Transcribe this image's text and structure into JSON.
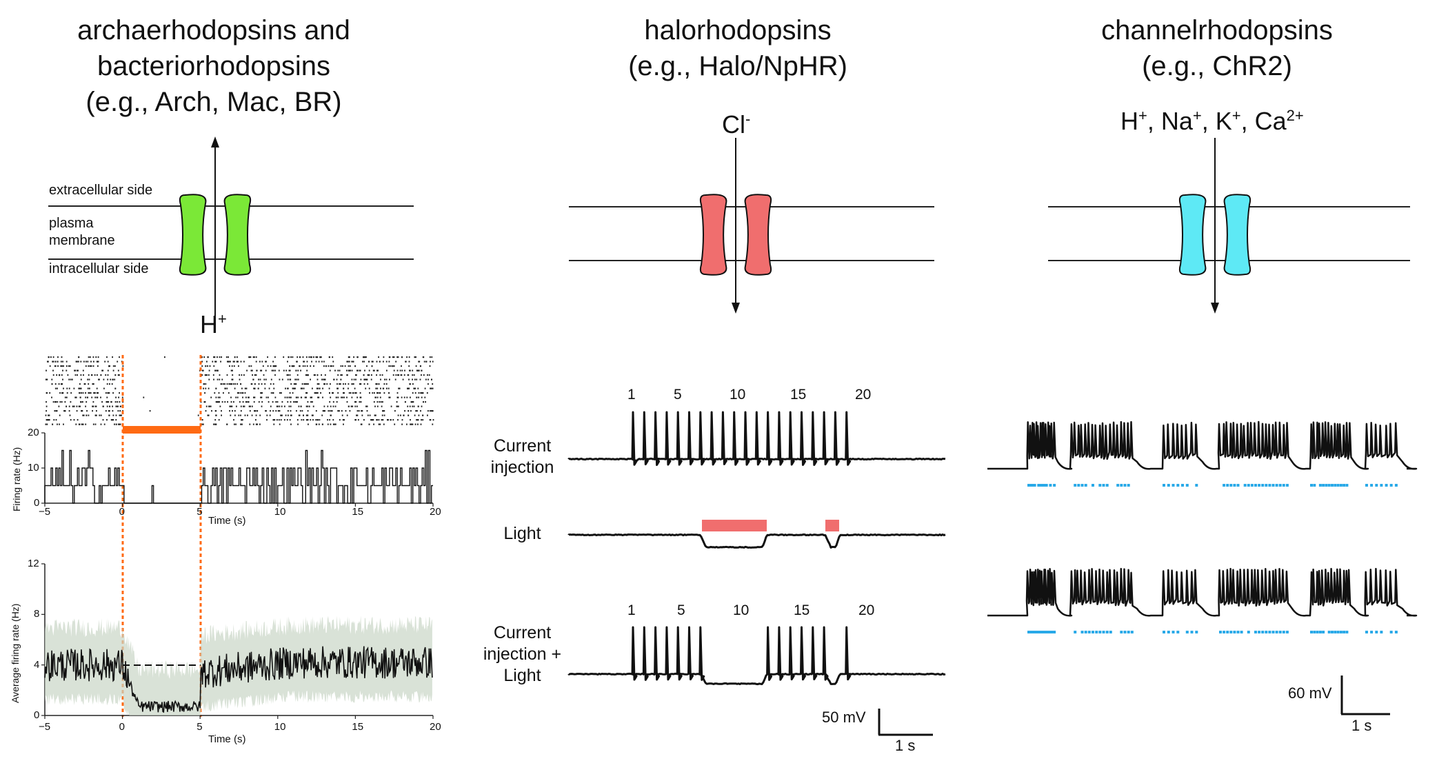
{
  "columns": [
    {
      "id": "arch",
      "title_lines": [
        "archaerhodopsins and",
        "bacteriorhodopsins",
        "(e.g., Arch, Mac, BR)"
      ],
      "color": "#7be837",
      "ion": "H+"
    },
    {
      "id": "halo",
      "title_lines": [
        "halorhodopsins",
        "(e.g., Halo/NpHR)"
      ],
      "color": "#f06e6e",
      "ion": "Cl-"
    },
    {
      "id": "chr2",
      "title_lines": [
        "channelrhodopsins",
        "(e.g., ChR2)"
      ],
      "color": "#5ee9f5",
      "ion": "H+, Na+, K+, Ca2+"
    }
  ],
  "membrane_labels": {
    "extracellular": "extracellular side",
    "membrane": "plasma membrane",
    "intracellular": "intracellular side"
  },
  "arch_panel": {
    "light_color": "#ff6a13",
    "raster": {
      "light_on_s": 0,
      "light_off_s": 5
    },
    "histogram": {
      "ylabel": "Firing rate (Hz)",
      "xlabel": "Time (s)",
      "xticks": [
        "−5",
        "0",
        "5",
        "10",
        "15",
        "20"
      ],
      "yticks": [
        "0",
        "10",
        "20"
      ],
      "xlim": [
        -5,
        20
      ],
      "ylim": [
        0,
        20
      ]
    },
    "average": {
      "ylabel": "Average firing  rate (Hz)",
      "xlabel": "Time (s)",
      "xticks": [
        "−5",
        "0",
        "5",
        "10",
        "15",
        "20"
      ],
      "yticks": [
        "0",
        "4",
        "8",
        "12"
      ],
      "xlim": [
        -5,
        20
      ],
      "ylim": [
        0,
        12
      ],
      "baseline": 4
    }
  },
  "halo_panel": {
    "rows": [
      {
        "label": "Current injection"
      },
      {
        "label": "Light"
      },
      {
        "label": "Current injection + Light"
      }
    ],
    "spike_numbers": [
      "1",
      "5",
      "10",
      "15",
      "20"
    ],
    "scalebar": {
      "v": "50 mV",
      "t": "1 s"
    }
  },
  "chr2_panel": {
    "marker_color": "#29a9e8",
    "scalebar": {
      "v": "60 mV",
      "t": "1 s"
    }
  },
  "chart_data": [
    {
      "type": "scatter",
      "title": "",
      "xlabel": "",
      "ylabel": "",
      "xlim": [
        -5,
        20
      ],
      "series": [
        {
          "name": "",
          "note_values": "spike raster, no spikes during light 0–5 s"
        }
      ]
    },
    {
      "type": "bar",
      "xlabel": "Time (s)",
      "ylabel": "Firing rate (Hz)",
      "xlim": [
        -5,
        20
      ],
      "ylim": [
        0,
        20
      ],
      "x": [
        -5,
        0,
        5,
        10,
        15,
        20
      ],
      "series": [
        {
          "name": "",
          "values": [
            5,
            0.5,
            5,
            5,
            5,
            5
          ]
        }
      ]
    },
    {
      "type": "line",
      "xlabel": "Time (s)",
      "ylabel": "Average firing  rate (Hz)",
      "xlim": [
        -5,
        20
      ],
      "ylim": [
        0,
        12
      ],
      "x": [
        -5,
        -2.5,
        0,
        1,
        2.5,
        4.9,
        5,
        7.5,
        10,
        12.5,
        15,
        17.5,
        20
      ],
      "series": [
        {
          "name": "",
          "values": [
            4,
            4,
            4,
            1,
            0.6,
            0.5,
            3,
            3.6,
            4,
            4.1,
            4.2,
            4.2,
            4.3
          ]
        }
      ]
    }
  ]
}
